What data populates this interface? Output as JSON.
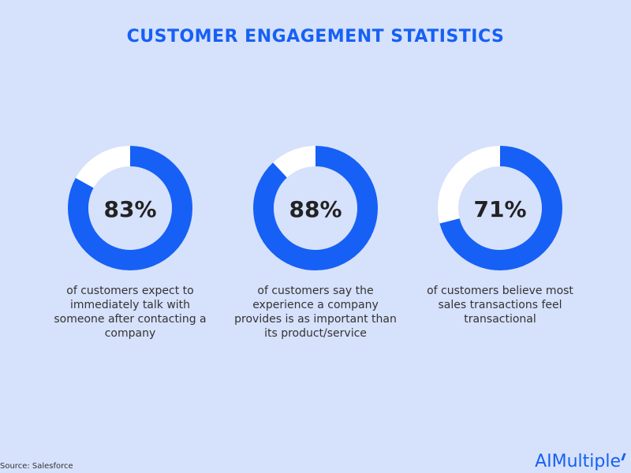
{
  "chart_data": {
    "type": "pie",
    "title": "CUSTOMER ENGAGEMENT STATISTICS",
    "items": [
      {
        "value": 83,
        "label": "83%",
        "description": "of customers expect to immediately talk with someone after contacting a company"
      },
      {
        "value": 88,
        "label": "88%",
        "description": "of customers say the experience a company provides is as important than its product/service"
      },
      {
        "value": 71,
        "label": "71%",
        "description": "of customers believe most sales transactions feel transactional"
      }
    ],
    "colors": {
      "filled": "#1660f5",
      "track": "#ffffff",
      "background": "#d6e1fb",
      "title": "#1660f5"
    }
  },
  "source": "Source: Salesforce",
  "brand": "AIMultiple"
}
